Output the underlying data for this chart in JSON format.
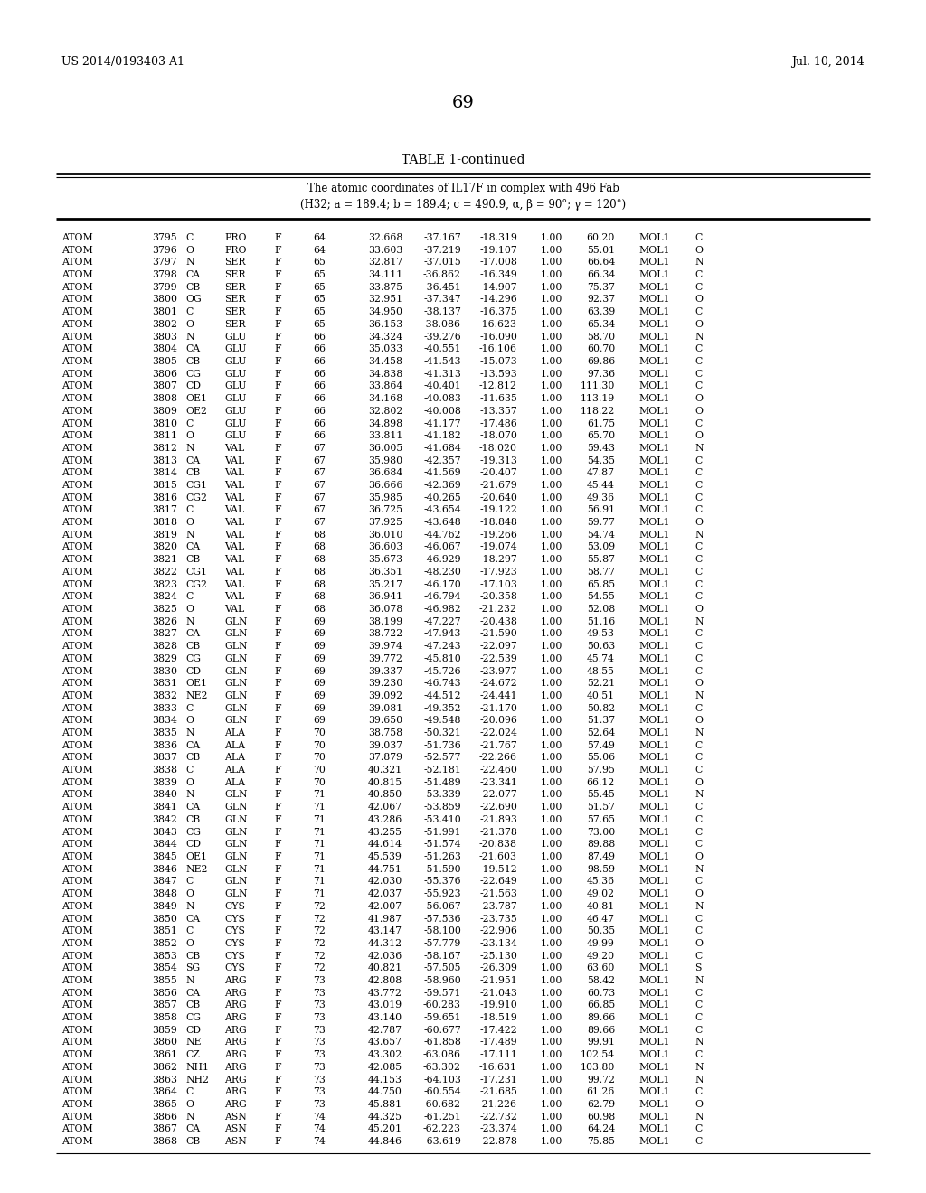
{
  "header_left": "US 2014/0193403 A1",
  "header_right": "Jul. 10, 2014",
  "page_number": "69",
  "table_title": "TABLE 1-continued",
  "table_subtitle1": "The atomic coordinates of IL17F in complex with 496 Fab",
  "table_subtitle2": "(H32; a = 189.4; b = 189.4; c = 490.9, α, β = 90°; γ = 120°)",
  "rows": [
    [
      "ATOM",
      "3795",
      "C",
      "PRO",
      "F",
      "64",
      "32.668",
      "-37.167",
      "-18.319",
      "1.00",
      "60.20",
      "MOL1",
      "C"
    ],
    [
      "ATOM",
      "3796",
      "O",
      "PRO",
      "F",
      "64",
      "33.603",
      "-37.219",
      "-19.107",
      "1.00",
      "55.01",
      "MOL1",
      "O"
    ],
    [
      "ATOM",
      "3797",
      "N",
      "SER",
      "F",
      "65",
      "32.817",
      "-37.015",
      "-17.008",
      "1.00",
      "66.64",
      "MOL1",
      "N"
    ],
    [
      "ATOM",
      "3798",
      "CA",
      "SER",
      "F",
      "65",
      "34.111",
      "-36.862",
      "-16.349",
      "1.00",
      "66.34",
      "MOL1",
      "C"
    ],
    [
      "ATOM",
      "3799",
      "CB",
      "SER",
      "F",
      "65",
      "33.875",
      "-36.451",
      "-14.907",
      "1.00",
      "75.37",
      "MOL1",
      "C"
    ],
    [
      "ATOM",
      "3800",
      "OG",
      "SER",
      "F",
      "65",
      "32.951",
      "-37.347",
      "-14.296",
      "1.00",
      "92.37",
      "MOL1",
      "O"
    ],
    [
      "ATOM",
      "3801",
      "C",
      "SER",
      "F",
      "65",
      "34.950",
      "-38.137",
      "-16.375",
      "1.00",
      "63.39",
      "MOL1",
      "C"
    ],
    [
      "ATOM",
      "3802",
      "O",
      "SER",
      "F",
      "65",
      "36.153",
      "-38.086",
      "-16.623",
      "1.00",
      "65.34",
      "MOL1",
      "O"
    ],
    [
      "ATOM",
      "3803",
      "N",
      "GLU",
      "F",
      "66",
      "34.324",
      "-39.276",
      "-16.090",
      "1.00",
      "58.70",
      "MOL1",
      "N"
    ],
    [
      "ATOM",
      "3804",
      "CA",
      "GLU",
      "F",
      "66",
      "35.033",
      "-40.551",
      "-16.106",
      "1.00",
      "60.70",
      "MOL1",
      "C"
    ],
    [
      "ATOM",
      "3805",
      "CB",
      "GLU",
      "F",
      "66",
      "34.458",
      "-41.543",
      "-15.073",
      "1.00",
      "69.86",
      "MOL1",
      "C"
    ],
    [
      "ATOM",
      "3806",
      "CG",
      "GLU",
      "F",
      "66",
      "34.838",
      "-41.313",
      "-13.593",
      "1.00",
      "97.36",
      "MOL1",
      "C"
    ],
    [
      "ATOM",
      "3807",
      "CD",
      "GLU",
      "F",
      "66",
      "33.864",
      "-40.401",
      "-12.812",
      "1.00",
      "111.30",
      "MOL1",
      "C"
    ],
    [
      "ATOM",
      "3808",
      "OE1",
      "GLU",
      "F",
      "66",
      "34.168",
      "-40.083",
      "-11.635",
      "1.00",
      "113.19",
      "MOL1",
      "O"
    ],
    [
      "ATOM",
      "3809",
      "OE2",
      "GLU",
      "F",
      "66",
      "32.802",
      "-40.008",
      "-13.357",
      "1.00",
      "118.22",
      "MOL1",
      "O"
    ],
    [
      "ATOM",
      "3810",
      "C",
      "GLU",
      "F",
      "66",
      "34.898",
      "-41.177",
      "-17.486",
      "1.00",
      "61.75",
      "MOL1",
      "C"
    ],
    [
      "ATOM",
      "3811",
      "O",
      "GLU",
      "F",
      "66",
      "33.811",
      "-41.182",
      "-18.070",
      "1.00",
      "65.70",
      "MOL1",
      "O"
    ],
    [
      "ATOM",
      "3812",
      "N",
      "VAL",
      "F",
      "67",
      "36.005",
      "-41.684",
      "-18.020",
      "1.00",
      "59.43",
      "MOL1",
      "N"
    ],
    [
      "ATOM",
      "3813",
      "CA",
      "VAL",
      "F",
      "67",
      "35.980",
      "-42.357",
      "-19.313",
      "1.00",
      "54.35",
      "MOL1",
      "C"
    ],
    [
      "ATOM",
      "3814",
      "CB",
      "VAL",
      "F",
      "67",
      "36.684",
      "-41.569",
      "-20.407",
      "1.00",
      "47.87",
      "MOL1",
      "C"
    ],
    [
      "ATOM",
      "3815",
      "CG1",
      "VAL",
      "F",
      "67",
      "36.666",
      "-42.369",
      "-21.679",
      "1.00",
      "45.44",
      "MOL1",
      "C"
    ],
    [
      "ATOM",
      "3816",
      "CG2",
      "VAL",
      "F",
      "67",
      "35.985",
      "-40.265",
      "-20.640",
      "1.00",
      "49.36",
      "MOL1",
      "C"
    ],
    [
      "ATOM",
      "3817",
      "C",
      "VAL",
      "F",
      "67",
      "36.725",
      "-43.654",
      "-19.122",
      "1.00",
      "56.91",
      "MOL1",
      "C"
    ],
    [
      "ATOM",
      "3818",
      "O",
      "VAL",
      "F",
      "67",
      "37.925",
      "-43.648",
      "-18.848",
      "1.00",
      "59.77",
      "MOL1",
      "O"
    ],
    [
      "ATOM",
      "3819",
      "N",
      "VAL",
      "F",
      "68",
      "36.010",
      "-44.762",
      "-19.266",
      "1.00",
      "54.74",
      "MOL1",
      "N"
    ],
    [
      "ATOM",
      "3820",
      "CA",
      "VAL",
      "F",
      "68",
      "36.603",
      "-46.067",
      "-19.074",
      "1.00",
      "53.09",
      "MOL1",
      "C"
    ],
    [
      "ATOM",
      "3821",
      "CB",
      "VAL",
      "F",
      "68",
      "35.673",
      "-46.929",
      "-18.297",
      "1.00",
      "55.87",
      "MOL1",
      "C"
    ],
    [
      "ATOM",
      "3822",
      "CG1",
      "VAL",
      "F",
      "68",
      "36.351",
      "-48.230",
      "-17.923",
      "1.00",
      "58.77",
      "MOL1",
      "C"
    ],
    [
      "ATOM",
      "3823",
      "CG2",
      "VAL",
      "F",
      "68",
      "35.217",
      "-46.170",
      "-17.103",
      "1.00",
      "65.85",
      "MOL1",
      "C"
    ],
    [
      "ATOM",
      "3824",
      "C",
      "VAL",
      "F",
      "68",
      "36.941",
      "-46.794",
      "-20.358",
      "1.00",
      "54.55",
      "MOL1",
      "C"
    ],
    [
      "ATOM",
      "3825",
      "O",
      "VAL",
      "F",
      "68",
      "36.078",
      "-46.982",
      "-21.232",
      "1.00",
      "52.08",
      "MOL1",
      "O"
    ],
    [
      "ATOM",
      "3826",
      "N",
      "GLN",
      "F",
      "69",
      "38.199",
      "-47.227",
      "-20.438",
      "1.00",
      "51.16",
      "MOL1",
      "N"
    ],
    [
      "ATOM",
      "3827",
      "CA",
      "GLN",
      "F",
      "69",
      "38.722",
      "-47.943",
      "-21.590",
      "1.00",
      "49.53",
      "MOL1",
      "C"
    ],
    [
      "ATOM",
      "3828",
      "CB",
      "GLN",
      "F",
      "69",
      "39.974",
      "-47.243",
      "-22.097",
      "1.00",
      "50.63",
      "MOL1",
      "C"
    ],
    [
      "ATOM",
      "3829",
      "CG",
      "GLN",
      "F",
      "69",
      "39.772",
      "-45.810",
      "-22.539",
      "1.00",
      "45.74",
      "MOL1",
      "C"
    ],
    [
      "ATOM",
      "3830",
      "CD",
      "GLN",
      "F",
      "69",
      "39.337",
      "-45.726",
      "-23.977",
      "1.00",
      "48.55",
      "MOL1",
      "C"
    ],
    [
      "ATOM",
      "3831",
      "OE1",
      "GLN",
      "F",
      "69",
      "39.230",
      "-46.743",
      "-24.672",
      "1.00",
      "52.21",
      "MOL1",
      "O"
    ],
    [
      "ATOM",
      "3832",
      "NE2",
      "GLN",
      "F",
      "69",
      "39.092",
      "-44.512",
      "-24.441",
      "1.00",
      "40.51",
      "MOL1",
      "N"
    ],
    [
      "ATOM",
      "3833",
      "C",
      "GLN",
      "F",
      "69",
      "39.081",
      "-49.352",
      "-21.170",
      "1.00",
      "50.82",
      "MOL1",
      "C"
    ],
    [
      "ATOM",
      "3834",
      "O",
      "GLN",
      "F",
      "69",
      "39.650",
      "-49.548",
      "-20.096",
      "1.00",
      "51.37",
      "MOL1",
      "O"
    ],
    [
      "ATOM",
      "3835",
      "N",
      "ALA",
      "F",
      "70",
      "38.758",
      "-50.321",
      "-22.024",
      "1.00",
      "52.64",
      "MOL1",
      "N"
    ],
    [
      "ATOM",
      "3836",
      "CA",
      "ALA",
      "F",
      "70",
      "39.037",
      "-51.736",
      "-21.767",
      "1.00",
      "57.49",
      "MOL1",
      "C"
    ],
    [
      "ATOM",
      "3837",
      "CB",
      "ALA",
      "F",
      "70",
      "37.879",
      "-52.577",
      "-22.266",
      "1.00",
      "55.06",
      "MOL1",
      "C"
    ],
    [
      "ATOM",
      "3838",
      "C",
      "ALA",
      "F",
      "70",
      "40.321",
      "-52.181",
      "-22.460",
      "1.00",
      "57.95",
      "MOL1",
      "C"
    ],
    [
      "ATOM",
      "3839",
      "O",
      "ALA",
      "F",
      "70",
      "40.815",
      "-51.489",
      "-23.341",
      "1.00",
      "66.12",
      "MOL1",
      "O"
    ],
    [
      "ATOM",
      "3840",
      "N",
      "GLN",
      "F",
      "71",
      "40.850",
      "-53.339",
      "-22.077",
      "1.00",
      "55.45",
      "MOL1",
      "N"
    ],
    [
      "ATOM",
      "3841",
      "CA",
      "GLN",
      "F",
      "71",
      "42.067",
      "-53.859",
      "-22.690",
      "1.00",
      "51.57",
      "MOL1",
      "C"
    ],
    [
      "ATOM",
      "3842",
      "CB",
      "GLN",
      "F",
      "71",
      "43.286",
      "-53.410",
      "-21.893",
      "1.00",
      "57.65",
      "MOL1",
      "C"
    ],
    [
      "ATOM",
      "3843",
      "CG",
      "GLN",
      "F",
      "71",
      "43.255",
      "-51.991",
      "-21.378",
      "1.00",
      "73.00",
      "MOL1",
      "C"
    ],
    [
      "ATOM",
      "3844",
      "CD",
      "GLN",
      "F",
      "71",
      "44.614",
      "-51.574",
      "-20.838",
      "1.00",
      "89.88",
      "MOL1",
      "C"
    ],
    [
      "ATOM",
      "3845",
      "OE1",
      "GLN",
      "F",
      "71",
      "45.539",
      "-51.263",
      "-21.603",
      "1.00",
      "87.49",
      "MOL1",
      "O"
    ],
    [
      "ATOM",
      "3846",
      "NE2",
      "GLN",
      "F",
      "71",
      "44.751",
      "-51.590",
      "-19.512",
      "1.00",
      "98.59",
      "MOL1",
      "N"
    ],
    [
      "ATOM",
      "3847",
      "C",
      "GLN",
      "F",
      "71",
      "42.030",
      "-55.376",
      "-22.649",
      "1.00",
      "45.36",
      "MOL1",
      "C"
    ],
    [
      "ATOM",
      "3848",
      "O",
      "GLN",
      "F",
      "71",
      "42.037",
      "-55.923",
      "-21.563",
      "1.00",
      "49.02",
      "MOL1",
      "O"
    ],
    [
      "ATOM",
      "3849",
      "N",
      "CYS",
      "F",
      "72",
      "42.007",
      "-56.067",
      "-23.787",
      "1.00",
      "40.81",
      "MOL1",
      "N"
    ],
    [
      "ATOM",
      "3850",
      "CA",
      "CYS",
      "F",
      "72",
      "41.987",
      "-57.536",
      "-23.735",
      "1.00",
      "46.47",
      "MOL1",
      "C"
    ],
    [
      "ATOM",
      "3851",
      "C",
      "CYS",
      "F",
      "72",
      "43.147",
      "-58.100",
      "-22.906",
      "1.00",
      "50.35",
      "MOL1",
      "C"
    ],
    [
      "ATOM",
      "3852",
      "O",
      "CYS",
      "F",
      "72",
      "44.312",
      "-57.779",
      "-23.134",
      "1.00",
      "49.99",
      "MOL1",
      "O"
    ],
    [
      "ATOM",
      "3853",
      "CB",
      "CYS",
      "F",
      "72",
      "42.036",
      "-58.167",
      "-25.130",
      "1.00",
      "49.20",
      "MOL1",
      "C"
    ],
    [
      "ATOM",
      "3854",
      "SG",
      "CYS",
      "F",
      "72",
      "40.821",
      "-57.505",
      "-26.309",
      "1.00",
      "63.60",
      "MOL1",
      "S"
    ],
    [
      "ATOM",
      "3855",
      "N",
      "ARG",
      "F",
      "73",
      "42.808",
      "-58.960",
      "-21.951",
      "1.00",
      "58.42",
      "MOL1",
      "N"
    ],
    [
      "ATOM",
      "3856",
      "CA",
      "ARG",
      "F",
      "73",
      "43.772",
      "-59.571",
      "-21.043",
      "1.00",
      "60.73",
      "MOL1",
      "C"
    ],
    [
      "ATOM",
      "3857",
      "CB",
      "ARG",
      "F",
      "73",
      "43.019",
      "-60.283",
      "-19.910",
      "1.00",
      "66.85",
      "MOL1",
      "C"
    ],
    [
      "ATOM",
      "3858",
      "CG",
      "ARG",
      "F",
      "73",
      "43.140",
      "-59.651",
      "-18.519",
      "1.00",
      "89.66",
      "MOL1",
      "C"
    ],
    [
      "ATOM",
      "3859",
      "CD",
      "ARG",
      "F",
      "73",
      "42.787",
      "-60.677",
      "-17.422",
      "1.00",
      "89.66",
      "MOL1",
      "C"
    ],
    [
      "ATOM",
      "3860",
      "NE",
      "ARG",
      "F",
      "73",
      "43.657",
      "-61.858",
      "-17.489",
      "1.00",
      "99.91",
      "MOL1",
      "N"
    ],
    [
      "ATOM",
      "3861",
      "CZ",
      "ARG",
      "F",
      "73",
      "43.302",
      "-63.086",
      "-17.111",
      "1.00",
      "102.54",
      "MOL1",
      "C"
    ],
    [
      "ATOM",
      "3862",
      "NH1",
      "ARG",
      "F",
      "73",
      "42.085",
      "-63.302",
      "-16.631",
      "1.00",
      "103.80",
      "MOL1",
      "N"
    ],
    [
      "ATOM",
      "3863",
      "NH2",
      "ARG",
      "F",
      "73",
      "44.153",
      "-64.103",
      "-17.231",
      "1.00",
      "99.72",
      "MOL1",
      "N"
    ],
    [
      "ATOM",
      "3864",
      "C",
      "ARG",
      "F",
      "73",
      "44.750",
      "-60.554",
      "-21.685",
      "1.00",
      "61.26",
      "MOL1",
      "C"
    ],
    [
      "ATOM",
      "3865",
      "O",
      "ARG",
      "F",
      "73",
      "45.881",
      "-60.682",
      "-21.226",
      "1.00",
      "62.79",
      "MOL1",
      "O"
    ],
    [
      "ATOM",
      "3866",
      "N",
      "ASN",
      "F",
      "74",
      "44.325",
      "-61.251",
      "-22.732",
      "1.00",
      "60.98",
      "MOL1",
      "N"
    ],
    [
      "ATOM",
      "3867",
      "CA",
      "ASN",
      "F",
      "74",
      "45.201",
      "-62.223",
      "-23.374",
      "1.00",
      "64.24",
      "MOL1",
      "C"
    ],
    [
      "ATOM",
      "3868",
      "CB",
      "ASN",
      "F",
      "74",
      "44.846",
      "-63.619",
      "-22.878",
      "1.00",
      "75.85",
      "MOL1",
      "C"
    ]
  ]
}
